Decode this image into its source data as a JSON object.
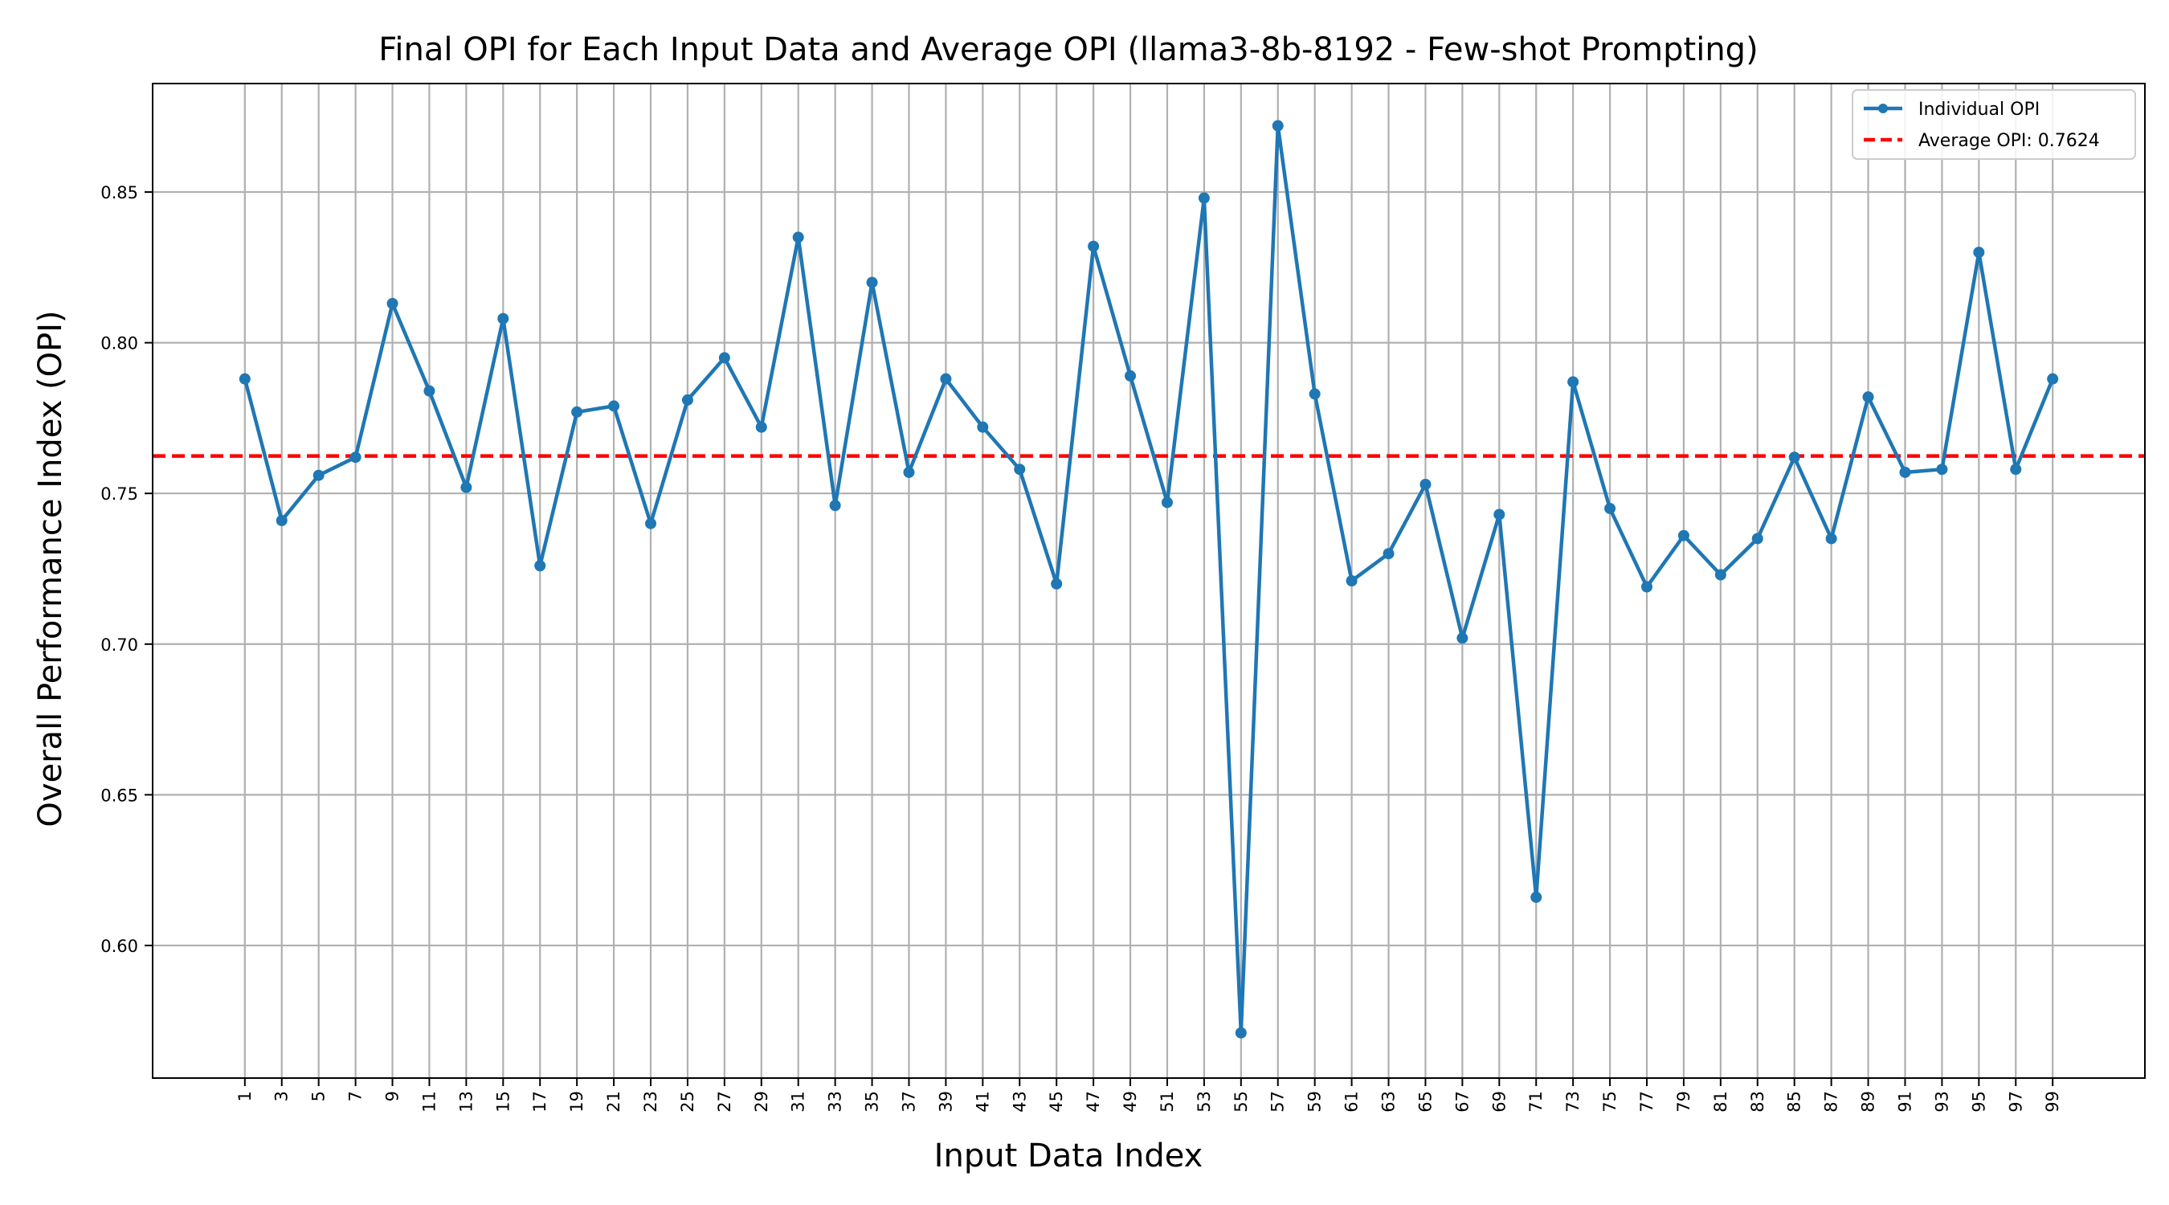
{
  "chart_data": {
    "type": "line",
    "title": "Final OPI for Each Input Data and Average OPI (llama3-8b-8192 - Few-shot Prompting)",
    "xlabel": "Input Data Index",
    "ylabel": "Overall Performance Index (OPI)",
    "x": [
      1,
      3,
      5,
      7,
      9,
      11,
      13,
      15,
      17,
      19,
      21,
      23,
      25,
      27,
      29,
      31,
      33,
      35,
      37,
      39,
      41,
      43,
      45,
      47,
      49,
      51,
      53,
      55,
      57,
      59,
      61,
      63,
      65,
      67,
      69,
      71,
      73,
      75,
      77,
      79,
      81,
      83,
      85,
      87,
      89,
      91,
      93,
      95,
      97,
      99
    ],
    "x_tick_labels": [
      "1",
      "3",
      "5",
      "7",
      "9",
      "11",
      "13",
      "15",
      "17",
      "19",
      "21",
      "23",
      "25",
      "27",
      "29",
      "31",
      "33",
      "35",
      "37",
      "39",
      "41",
      "43",
      "45",
      "47",
      "49",
      "51",
      "53",
      "55",
      "57",
      "59",
      "61",
      "63",
      "65",
      "67",
      "69",
      "71",
      "73",
      "75",
      "77",
      "79",
      "81",
      "83",
      "85",
      "87",
      "89",
      "91",
      "93",
      "95",
      "97",
      "99"
    ],
    "series": [
      {
        "name": "Individual OPI",
        "color": "#1f77b4",
        "style": "solid-with-markers",
        "values": [
          0.788,
          0.741,
          0.756,
          0.762,
          0.813,
          0.784,
          0.752,
          0.808,
          0.726,
          0.777,
          0.779,
          0.74,
          0.781,
          0.795,
          0.772,
          0.835,
          0.746,
          0.82,
          0.757,
          0.788,
          0.772,
          0.758,
          0.72,
          0.832,
          0.789,
          0.747,
          0.848,
          0.571,
          0.872,
          0.783,
          0.721,
          0.73,
          0.753,
          0.702,
          0.743,
          0.616,
          0.787,
          0.745,
          0.719,
          0.736,
          0.723,
          0.735,
          0.762,
          0.735,
          0.782,
          0.757,
          0.758,
          0.83,
          0.758,
          0.788
        ]
      },
      {
        "name": "Average OPI: 0.7624",
        "color": "#ff0000",
        "style": "dashed",
        "value": 0.7624
      }
    ],
    "y_ticks": [
      0.6,
      0.65,
      0.7,
      0.75,
      0.8,
      0.85
    ],
    "y_tick_labels": [
      "0.60",
      "0.65",
      "0.70",
      "0.75",
      "0.80",
      "0.85"
    ],
    "ylim": [
      0.556,
      0.886
    ],
    "xlim": [
      -4.0,
      104.0
    ],
    "grid": true,
    "legend_position": "top-right"
  }
}
